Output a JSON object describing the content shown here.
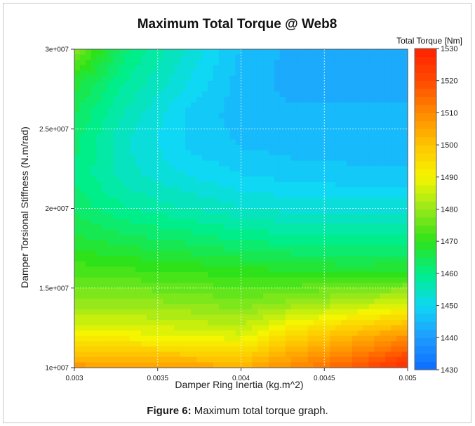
{
  "caption": {
    "label": "Figure 6:",
    "text": " Maximum total torque graph."
  },
  "chart_data": {
    "type": "heatmap",
    "title": "Maximum Total Torque @ Web8",
    "xlabel": "Damper Ring Inertia (kg.m^2)",
    "ylabel": "Damper Torsional Stiffness (N.m/rad)",
    "colorbar_label": "Total Torque [Nm]",
    "xlim": [
      0.003,
      0.005
    ],
    "ylim": [
      10000000,
      30000000
    ],
    "x_ticks": [
      {
        "value": 0.003,
        "label": "0.003"
      },
      {
        "value": 0.0035,
        "label": "0.0035"
      },
      {
        "value": 0.004,
        "label": "0.004"
      },
      {
        "value": 0.0045,
        "label": "0.0045"
      },
      {
        "value": 0.005,
        "label": "0.005"
      }
    ],
    "y_ticks": [
      {
        "value": 10000000,
        "label": "1e+007"
      },
      {
        "value": 15000000,
        "label": "1.5e+007"
      },
      {
        "value": 20000000,
        "label": "2e+007"
      },
      {
        "value": 25000000,
        "label": "2.5e+007"
      },
      {
        "value": 30000000,
        "label": "3e+007"
      }
    ],
    "colorbar": {
      "min": 1430,
      "max": 1530,
      "ticks": [
        1430,
        1440,
        1450,
        1460,
        1470,
        1480,
        1490,
        1500,
        1510,
        1520,
        1530
      ]
    },
    "grid": true,
    "x": [
      0.003,
      0.0033,
      0.0037,
      0.004,
      0.0043,
      0.0047,
      0.005
    ],
    "y": [
      10000000,
      12000000,
      14000000,
      16000000,
      18000000,
      20000000,
      22000000,
      24000000,
      26000000,
      28000000,
      30000000
    ],
    "z": [
      [
        1508,
        1507,
        1506,
        1504,
        1510,
        1518,
        1528
      ],
      [
        1490,
        1490,
        1488,
        1487,
        1496,
        1503,
        1508
      ],
      [
        1480,
        1480,
        1479,
        1477,
        1480,
        1484,
        1487
      ],
      [
        1473,
        1472,
        1471,
        1470,
        1469,
        1468,
        1469
      ],
      [
        1467,
        1465,
        1463,
        1461,
        1460,
        1460,
        1460
      ],
      [
        1463,
        1459,
        1456,
        1454,
        1453,
        1453,
        1453
      ],
      [
        1461,
        1455,
        1451,
        1449,
        1448,
        1447,
        1447
      ],
      [
        1462,
        1454,
        1448,
        1446,
        1445,
        1445,
        1445
      ],
      [
        1464,
        1456,
        1448,
        1445,
        1444,
        1444,
        1444
      ],
      [
        1468,
        1459,
        1451,
        1445,
        1443,
        1443,
        1443
      ],
      [
        1478,
        1462,
        1453,
        1446,
        1443,
        1442,
        1442
      ]
    ],
    "colors": [
      "#0b6cff",
      "#1f9bff",
      "#0ed8f4",
      "#00ee8a",
      "#2ee21a",
      "#96e81a",
      "#f5f500",
      "#ffc400",
      "#ff8a00",
      "#ff4a00",
      "#ff2200"
    ]
  }
}
